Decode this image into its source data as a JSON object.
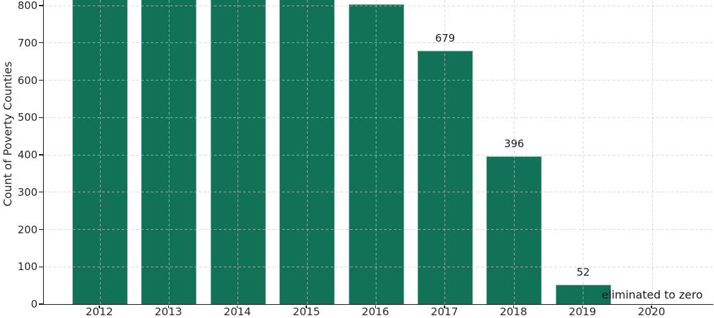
{
  "chart_data": {
    "type": "bar",
    "title": "",
    "xlabel": "",
    "ylabel": "Count of Poverty Counties",
    "categories": [
      "2012",
      "2013",
      "2014",
      "2015",
      "2016",
      "2017",
      "2018",
      "2019",
      "2020"
    ],
    "values": [
      832,
      832,
      832,
      832,
      804,
      679,
      396,
      52,
      0
    ],
    "bar_labels": [
      "",
      "",
      "",
      "",
      "",
      "679",
      "396",
      "52",
      ""
    ],
    "y_ticks": [
      0,
      100,
      200,
      300,
      400,
      500,
      600,
      700,
      800
    ],
    "ylim_visible": [
      0,
      815
    ],
    "annotation": {
      "text": "eliminated to zero",
      "category": "2020"
    },
    "grid": true,
    "legend_position": "none",
    "colors": {
      "bar": "#117257",
      "grid": "#c8c8c8",
      "axis": "#1a1a1a",
      "text": "#262626"
    }
  }
}
